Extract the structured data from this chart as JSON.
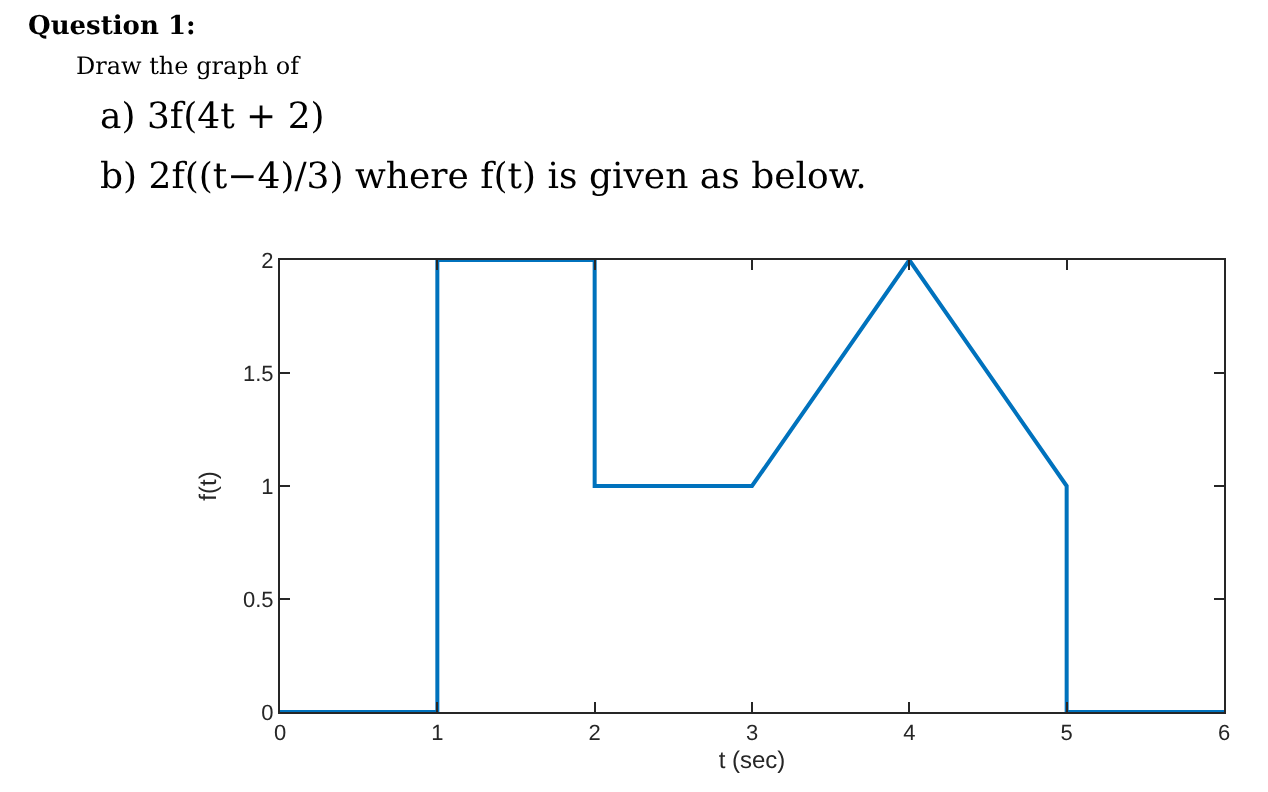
{
  "chart_data": {
    "type": "line",
    "title": "Question 1:",
    "annotations": [
      "Draw the graph of",
      "a) 3f(4t + 2)",
      "b) 2f((t−4)/3) where f(t) is given as below."
    ],
    "xlabel": "t (sec)",
    "ylabel": "f(t)",
    "x": [
      0,
      1,
      1,
      2,
      2,
      3,
      4,
      5,
      5,
      6
    ],
    "series": [
      {
        "color": "#0072bd",
        "values": [
          0,
          0,
          2,
          2,
          1,
          1,
          2,
          1,
          0,
          0
        ]
      }
    ],
    "xlim": [
      0,
      6
    ],
    "xticks": [
      0,
      1,
      2,
      3,
      4,
      5,
      6
    ],
    "ylim": [
      0,
      2
    ],
    "yticks": [
      0,
      0.5,
      1,
      1.5,
      2
    ],
    "grid": false,
    "line_style": "solid"
  }
}
